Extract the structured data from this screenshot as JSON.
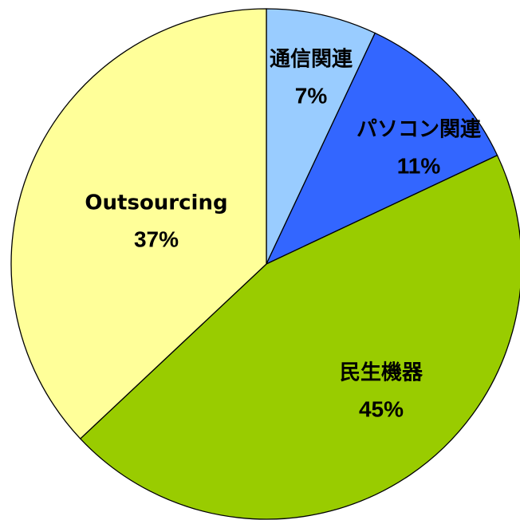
{
  "chart_data": {
    "type": "pie",
    "categories": [
      "通信関連",
      "パソコン関連",
      "民生機器",
      "Outsourcing"
    ],
    "values": [
      7,
      11,
      45,
      37
    ],
    "value_labels": [
      "7%",
      "11%",
      "45%",
      "37%"
    ],
    "colors": [
      "#99ccff",
      "#3366ff",
      "#99cc00",
      "#ffff99"
    ]
  }
}
